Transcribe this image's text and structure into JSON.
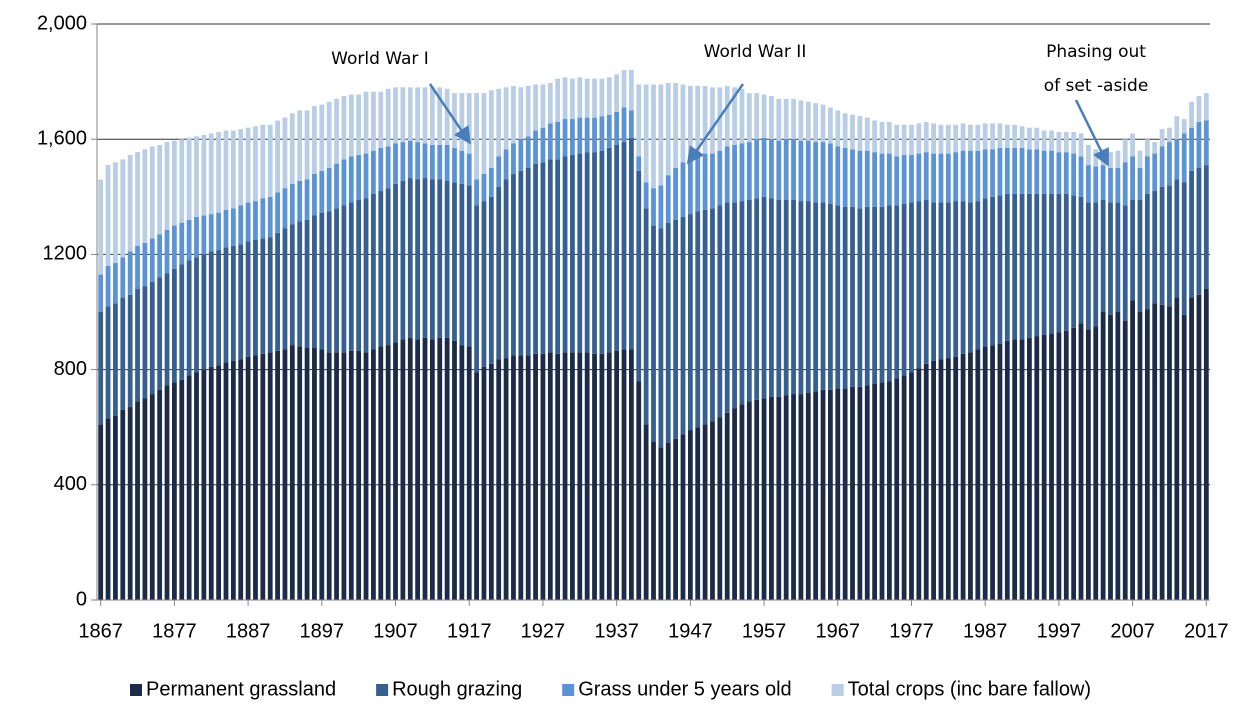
{
  "chart_data": {
    "type": "bar",
    "stacked": true,
    "x": [
      1867,
      1868,
      1869,
      1870,
      1871,
      1872,
      1873,
      1874,
      1875,
      1876,
      1877,
      1878,
      1879,
      1880,
      1881,
      1882,
      1883,
      1884,
      1885,
      1886,
      1887,
      1888,
      1889,
      1890,
      1891,
      1892,
      1893,
      1894,
      1895,
      1896,
      1897,
      1898,
      1899,
      1900,
      1901,
      1902,
      1903,
      1904,
      1905,
      1906,
      1907,
      1908,
      1909,
      1910,
      1911,
      1912,
      1913,
      1914,
      1915,
      1916,
      1917,
      1918,
      1919,
      1920,
      1921,
      1922,
      1923,
      1924,
      1925,
      1926,
      1927,
      1928,
      1929,
      1930,
      1931,
      1932,
      1933,
      1934,
      1935,
      1936,
      1937,
      1938,
      1939,
      1940,
      1941,
      1942,
      1943,
      1944,
      1945,
      1946,
      1947,
      1948,
      1949,
      1950,
      1951,
      1952,
      1953,
      1954,
      1955,
      1956,
      1957,
      1958,
      1959,
      1960,
      1961,
      1962,
      1963,
      1964,
      1965,
      1966,
      1967,
      1968,
      1969,
      1970,
      1971,
      1972,
      1973,
      1974,
      1975,
      1976,
      1977,
      1978,
      1979,
      1980,
      1981,
      1982,
      1983,
      1984,
      1985,
      1986,
      1987,
      1988,
      1989,
      1990,
      1991,
      1992,
      1993,
      1994,
      1995,
      1996,
      1997,
      1998,
      1999,
      2000,
      2001,
      2002,
      2003,
      2004,
      2005,
      2006,
      2007,
      2008,
      2009,
      2010,
      2011,
      2012,
      2013,
      2014,
      2015,
      2016,
      2017
    ],
    "xlim": [
      1866.5,
      2017.5
    ],
    "xticks": [
      1867,
      1877,
      1887,
      1897,
      1907,
      1917,
      1927,
      1937,
      1947,
      1957,
      1967,
      1977,
      1987,
      1997,
      2007,
      2017
    ],
    "ylim": [
      0,
      2000
    ],
    "yticks": [
      0,
      400,
      800,
      1200,
      {
        "value": 1600,
        "label": "1,600"
      },
      {
        "value": 2000,
        "label": "2,000"
      }
    ],
    "grid": true,
    "legend": "bottom",
    "annotations": [
      "World War I",
      "World War II",
      "Phasing out",
      "of set -aside"
    ],
    "series": [
      {
        "name": "Permanent grassland",
        "color": "#1c2b48",
        "values": [
          610,
          630,
          640,
          660,
          670,
          690,
          700,
          715,
          730,
          745,
          755,
          765,
          780,
          790,
          800,
          810,
          815,
          825,
          830,
          835,
          845,
          850,
          855,
          860,
          865,
          870,
          885,
          880,
          875,
          875,
          870,
          860,
          860,
          860,
          865,
          865,
          860,
          870,
          880,
          885,
          895,
          905,
          910,
          905,
          910,
          905,
          910,
          910,
          900,
          885,
          880,
          790,
          810,
          820,
          835,
          840,
          850,
          850,
          850,
          855,
          855,
          860,
          855,
          860,
          860,
          860,
          860,
          855,
          855,
          860,
          865,
          870,
          870,
          760,
          610,
          550,
          530,
          545,
          560,
          575,
          590,
          600,
          610,
          620,
          635,
          650,
          665,
          680,
          690,
          695,
          700,
          705,
          705,
          710,
          715,
          715,
          720,
          725,
          730,
          730,
          735,
          735,
          740,
          740,
          745,
          750,
          755,
          760,
          770,
          780,
          790,
          805,
          820,
          830,
          835,
          840,
          845,
          855,
          860,
          870,
          880,
          885,
          890,
          900,
          905,
          905,
          910,
          915,
          920,
          925,
          930,
          935,
          945,
          960,
          940,
          950,
          1000,
          990,
          1000,
          970,
          1040,
          1000,
          1010,
          1030,
          1025,
          1020,
          1050,
          990,
          1050,
          1060,
          1080
        ]
      },
      {
        "name": "Rough grazing",
        "color": "#365f92",
        "values": [
          390,
          390,
          390,
          390,
          390,
          390,
          390,
          390,
          390,
          390,
          395,
          400,
          400,
          400,
          400,
          400,
          400,
          400,
          400,
          400,
          400,
          400,
          400,
          400,
          410,
          420,
          420,
          435,
          445,
          460,
          475,
          490,
          500,
          510,
          515,
          525,
          535,
          540,
          540,
          545,
          550,
          550,
          555,
          555,
          555,
          555,
          550,
          545,
          550,
          560,
          560,
          580,
          575,
          580,
          600,
          620,
          630,
          640,
          650,
          660,
          665,
          670,
          675,
          680,
          685,
          690,
          695,
          700,
          705,
          710,
          715,
          720,
          735,
          730,
          750,
          750,
          760,
          765,
          760,
          755,
          750,
          750,
          745,
          740,
          735,
          730,
          715,
          705,
          700,
          700,
          700,
          690,
          685,
          680,
          675,
          670,
          665,
          655,
          650,
          645,
          635,
          630,
          625,
          620,
          620,
          615,
          610,
          610,
          600,
          595,
          590,
          580,
          570,
          550,
          545,
          540,
          540,
          530,
          520,
          515,
          515,
          515,
          515,
          510,
          505,
          505,
          500,
          495,
          490,
          485,
          480,
          475,
          460,
          440,
          440,
          430,
          390,
          390,
          380,
          400,
          350,
          390,
          400,
          390,
          410,
          420,
          410,
          460,
          440,
          440,
          430
        ]
      },
      {
        "name": "Grass under 5 years old",
        "color": "#5b93d6",
        "values": [
          130,
          140,
          140,
          140,
          150,
          150,
          150,
          150,
          150,
          150,
          150,
          145,
          140,
          140,
          135,
          130,
          130,
          130,
          130,
          135,
          135,
          135,
          140,
          140,
          140,
          140,
          140,
          140,
          140,
          145,
          145,
          150,
          155,
          160,
          160,
          155,
          155,
          150,
          150,
          145,
          140,
          135,
          130,
          130,
          120,
          120,
          120,
          125,
          120,
          115,
          110,
          90,
          95,
          100,
          105,
          105,
          105,
          110,
          110,
          115,
          120,
          125,
          130,
          130,
          125,
          125,
          120,
          120,
          120,
          115,
          115,
          120,
          95,
          50,
          90,
          130,
          150,
          165,
          180,
          190,
          200,
          195,
          195,
          190,
          190,
          195,
          200,
          200,
          200,
          205,
          205,
          205,
          205,
          210,
          210,
          210,
          210,
          210,
          210,
          210,
          205,
          205,
          200,
          200,
          195,
          190,
          185,
          180,
          170,
          170,
          165,
          165,
          165,
          170,
          170,
          170,
          170,
          175,
          180,
          175,
          170,
          165,
          165,
          160,
          160,
          160,
          155,
          155,
          150,
          150,
          145,
          145,
          145,
          140,
          130,
          125,
          120,
          120,
          120,
          150,
          150,
          110,
          130,
          130,
          140,
          150,
          140,
          170,
          150,
          160,
          155
        ]
      },
      {
        "name": "Total crops (inc bare fallow)",
        "color": "#b9cde5",
        "values": [
          330,
          350,
          350,
          340,
          335,
          325,
          325,
          320,
          310,
          305,
          295,
          290,
          285,
          280,
          280,
          280,
          280,
          275,
          270,
          265,
          260,
          260,
          255,
          250,
          250,
          245,
          245,
          245,
          240,
          235,
          230,
          230,
          225,
          220,
          215,
          210,
          215,
          205,
          195,
          200,
          195,
          190,
          185,
          190,
          195,
          200,
          200,
          195,
          190,
          200,
          210,
          300,
          280,
          270,
          235,
          215,
          200,
          180,
          175,
          160,
          150,
          140,
          150,
          145,
          140,
          140,
          135,
          135,
          130,
          130,
          130,
          130,
          140,
          250,
          340,
          360,
          350,
          320,
          295,
          270,
          245,
          240,
          235,
          230,
          220,
          210,
          200,
          190,
          170,
          160,
          150,
          150,
          145,
          140,
          140,
          140,
          135,
          135,
          130,
          125,
          125,
          120,
          120,
          120,
          115,
          110,
          110,
          110,
          110,
          105,
          105,
          105,
          105,
          105,
          100,
          100,
          95,
          95,
          90,
          90,
          90,
          90,
          85,
          80,
          80,
          75,
          75,
          75,
          70,
          70,
          70,
          70,
          75,
          80,
          70,
          60,
          55,
          55,
          60,
          80,
          80,
          60,
          60,
          40,
          60,
          50,
          80,
          50,
          90,
          90,
          95
        ]
      }
    ]
  }
}
